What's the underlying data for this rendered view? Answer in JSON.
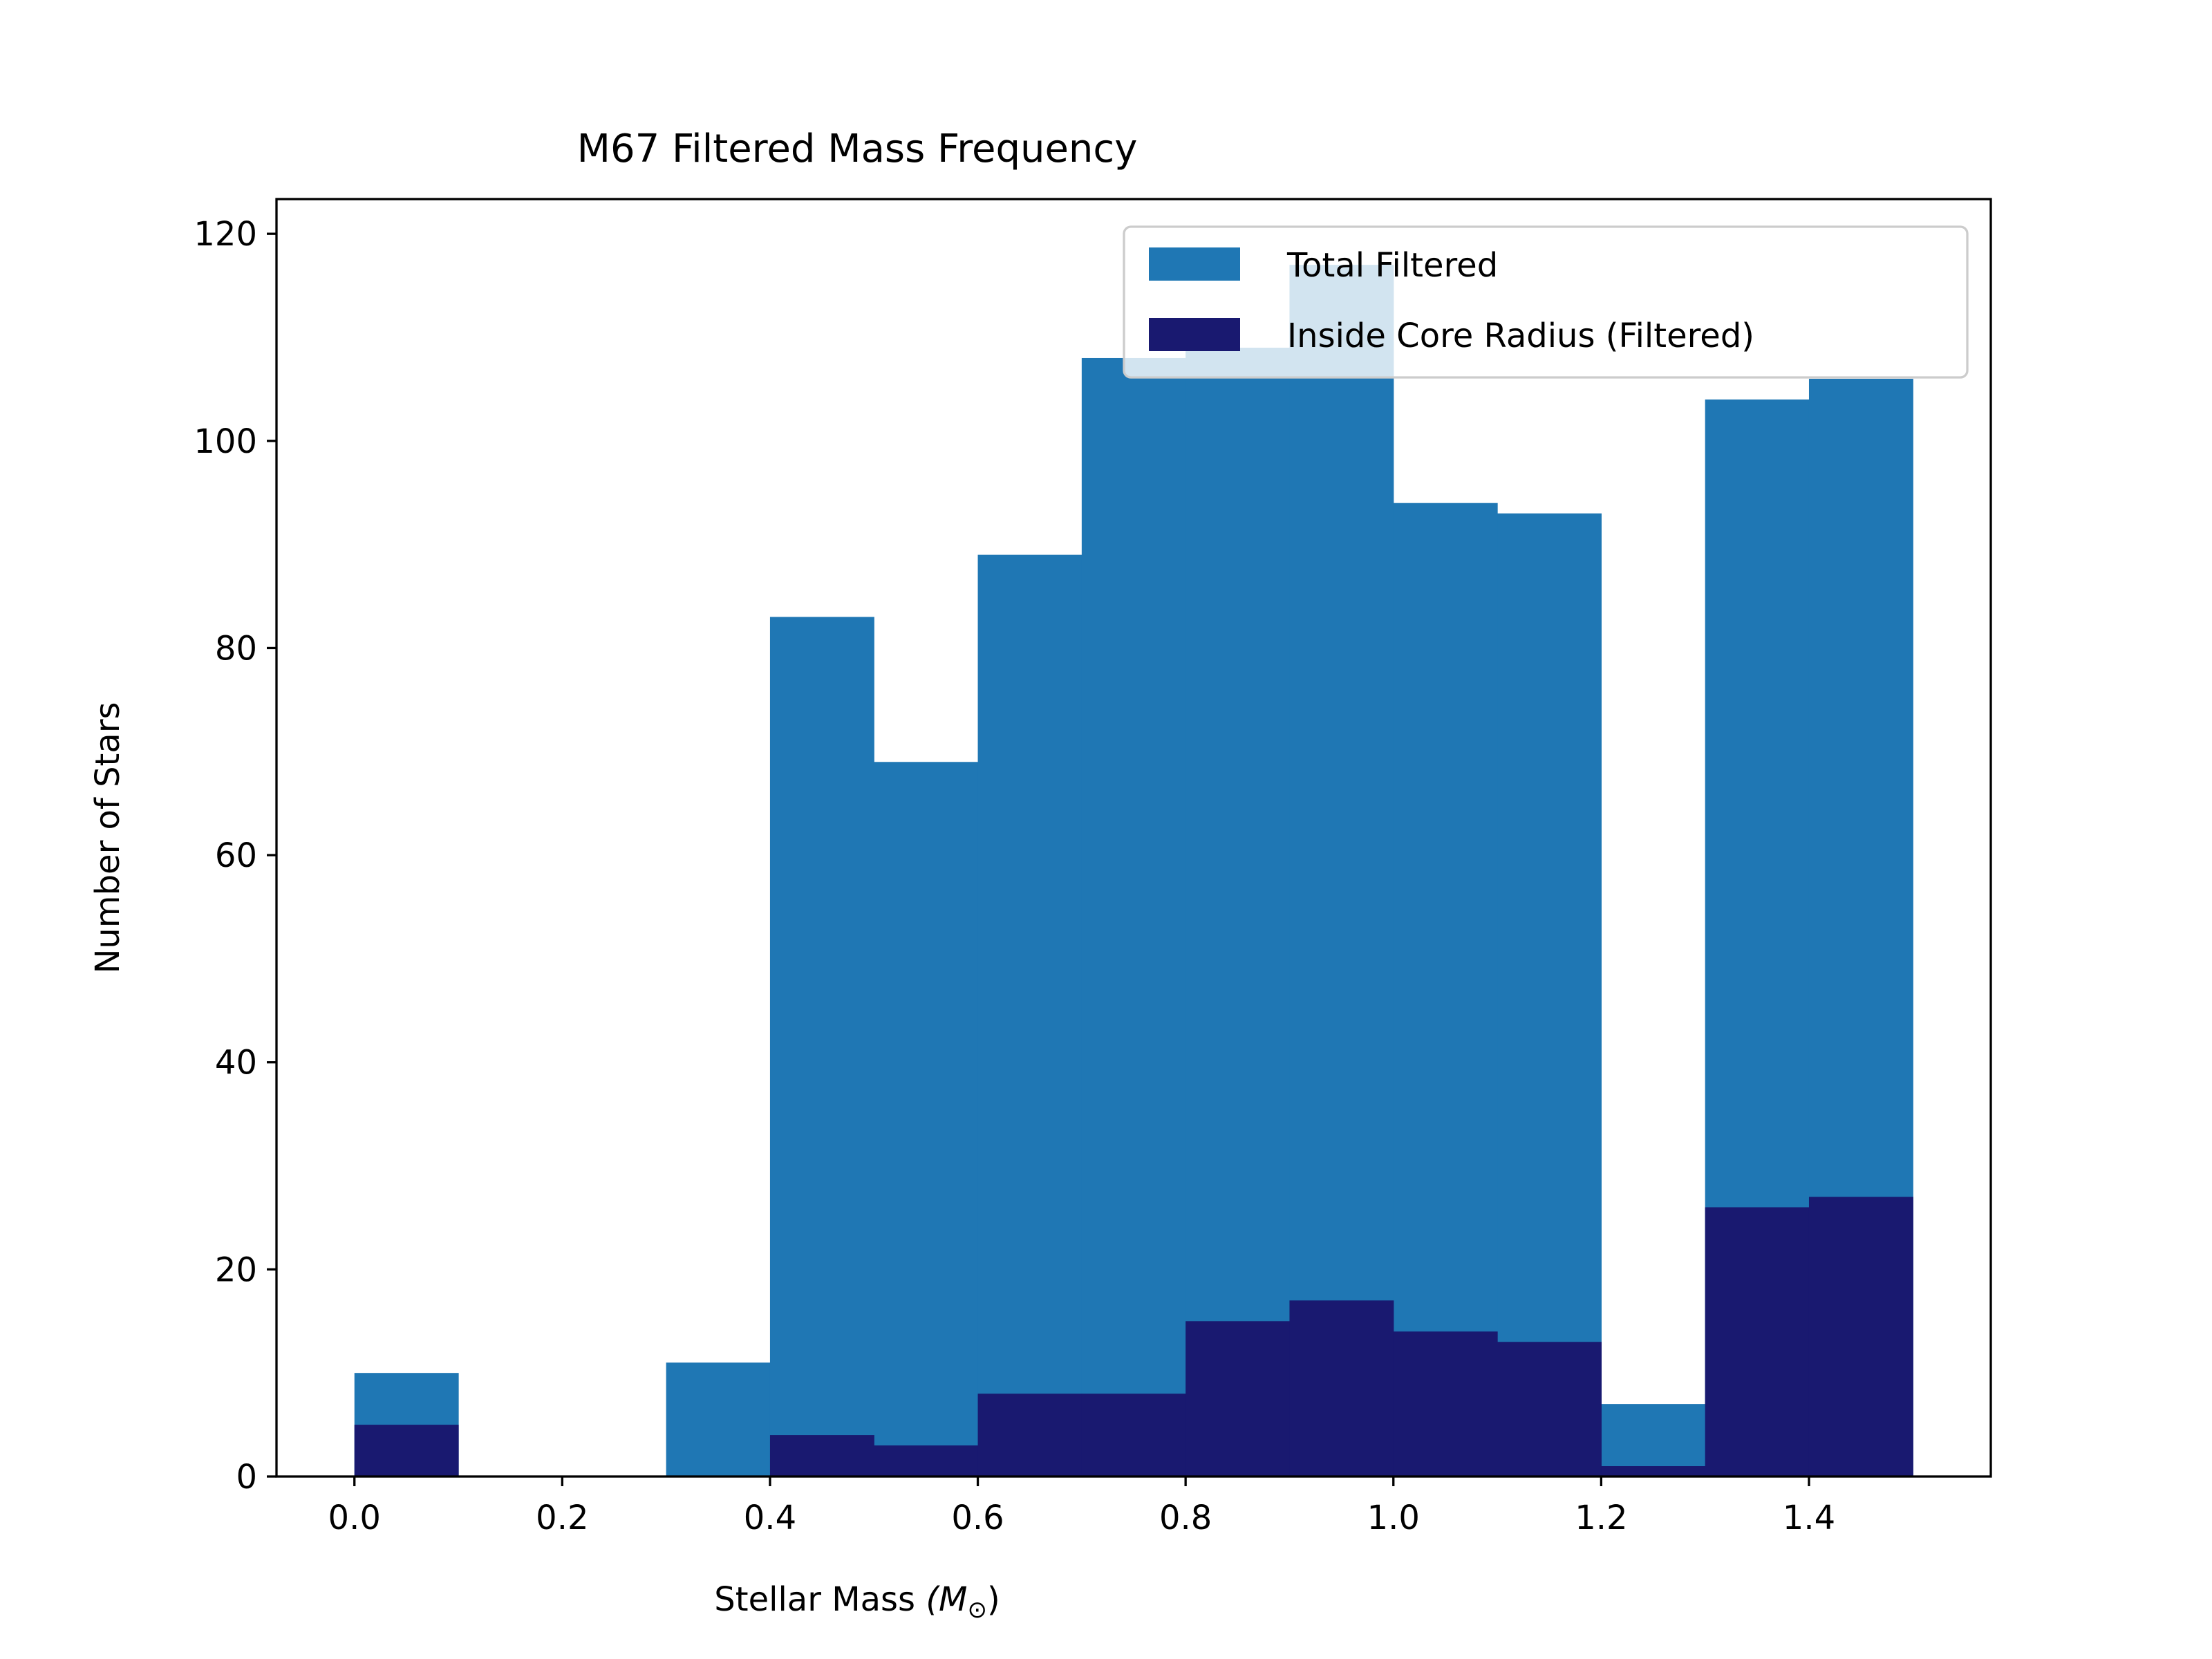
{
  "chart_data": {
    "type": "bar",
    "title": "M67 Filtered Mass Frequency",
    "xlabel": "Stellar Mass",
    "xlabel_unit": "(M",
    "xlabel_unit_sub": "⊙",
    "xlabel_unit_close": ")",
    "ylabel": "Number of Stars",
    "xlim": [
      -0.075,
      1.575
    ],
    "ylim": [
      0,
      123.35
    ],
    "xticks": [
      "0.0",
      "0.2",
      "0.4",
      "0.6",
      "0.8",
      "1.0",
      "1.2",
      "1.4"
    ],
    "xtick_values": [
      0.0,
      0.2,
      0.4,
      0.6,
      0.8,
      1.0,
      1.2,
      1.4
    ],
    "yticks": [
      "0",
      "20",
      "40",
      "60",
      "80",
      "100",
      "120"
    ],
    "ytick_values": [
      0,
      20,
      40,
      60,
      80,
      100,
      120
    ],
    "bin_edges": [
      0.0,
      0.1,
      0.2,
      0.3,
      0.4,
      0.5,
      0.6,
      0.7,
      0.8,
      0.9,
      1.0,
      1.1,
      1.2,
      1.3,
      1.4,
      1.5
    ],
    "legend_position": "upper right",
    "grid": false,
    "series": [
      {
        "name": "Total Filtered",
        "color": "#1f77b4",
        "values": [
          10,
          0,
          0,
          11,
          83,
          69,
          89,
          108,
          109,
          117,
          94,
          93,
          7,
          104,
          106
        ]
      },
      {
        "name": "Inside Core Radius (Filtered)",
        "color": "#191970",
        "values": [
          5,
          0,
          0,
          0,
          4,
          3,
          8,
          8,
          15,
          17,
          14,
          13,
          1,
          26,
          27
        ]
      }
    ]
  }
}
